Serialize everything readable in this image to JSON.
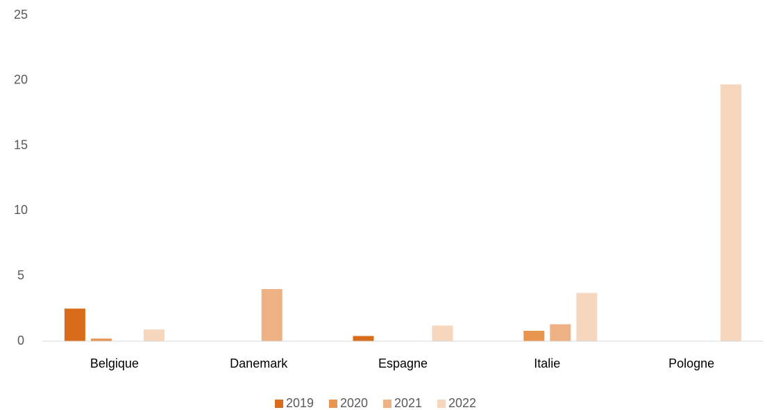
{
  "chart_data": {
    "type": "bar",
    "categories": [
      "Belgique",
      "Danemark",
      "Espagne",
      "Italie",
      "Pologne"
    ],
    "series": [
      {
        "name": "2019",
        "color": "#d86c1a",
        "values": [
          2.5,
          0,
          0.4,
          0,
          0
        ]
      },
      {
        "name": "2020",
        "color": "#e8954f",
        "values": [
          0.2,
          0,
          0,
          0.8,
          0
        ]
      },
      {
        "name": "2021",
        "color": "#edb183",
        "values": [
          0,
          4.0,
          0,
          1.3,
          0
        ]
      },
      {
        "name": "2022",
        "color": "#f6d6bd",
        "values": [
          0.9,
          0,
          1.2,
          3.7,
          19.7
        ]
      }
    ],
    "ylim": [
      0,
      25
    ],
    "yticks": [
      0,
      5,
      10,
      15,
      20,
      25
    ],
    "grid": false,
    "legend": "bottom"
  }
}
